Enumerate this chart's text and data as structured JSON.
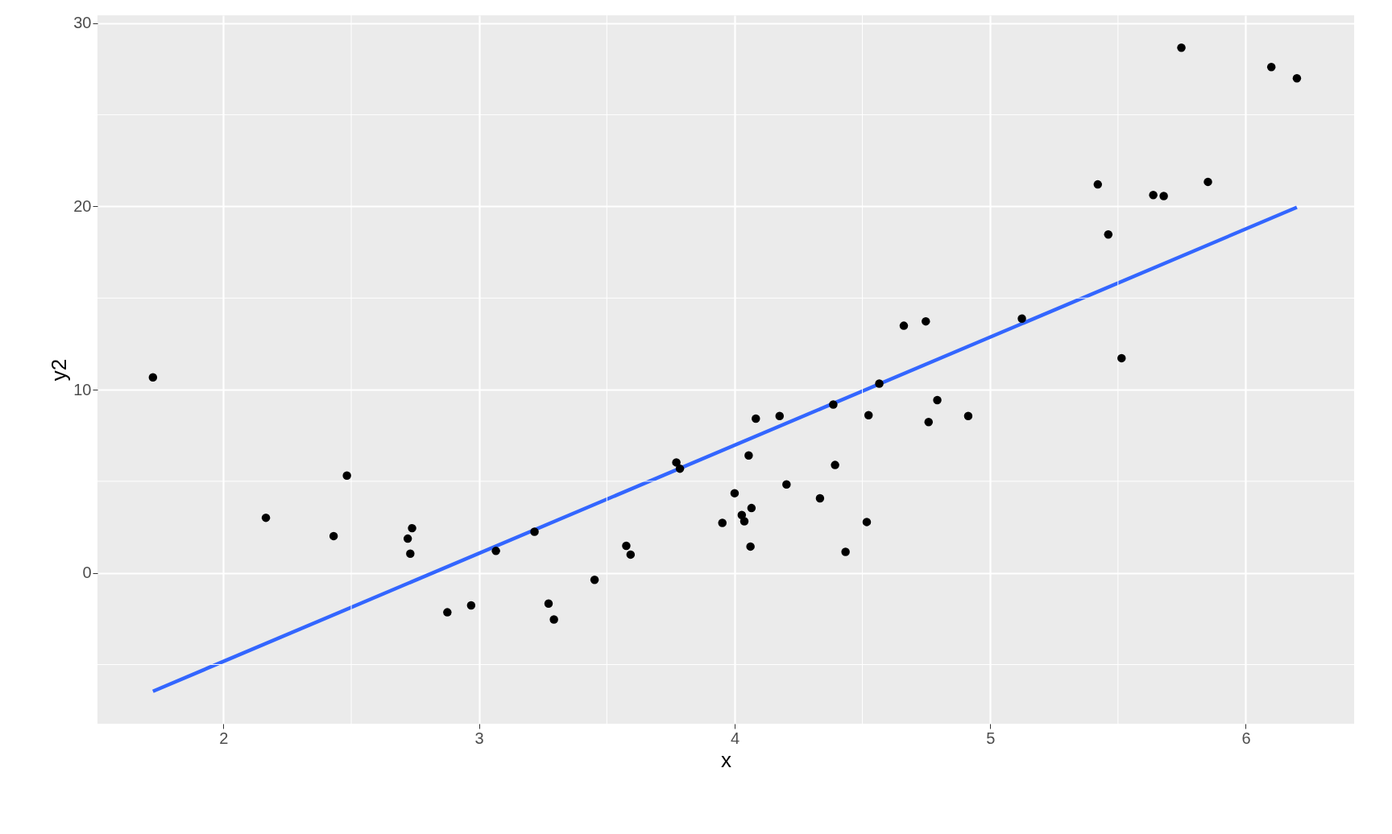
{
  "chart_data": {
    "type": "scatter",
    "xlabel": "x",
    "ylabel": "y2",
    "xlim": [
      1.507,
      6.424
    ],
    "ylim": [
      -8.23,
      30.43
    ],
    "xticks": [
      2,
      3,
      4,
      5,
      6
    ],
    "yticks": [
      0,
      10,
      20,
      30
    ],
    "grid": true,
    "legend": false,
    "marker": "circle",
    "series": [
      {
        "type": "scatter",
        "color": "#000000",
        "x": [
          1.724,
          2.166,
          2.431,
          2.483,
          2.721,
          2.738,
          2.731,
          2.876,
          2.969,
          3.066,
          3.217,
          3.272,
          3.293,
          3.452,
          3.576,
          3.593,
          3.772,
          3.786,
          3.952,
          4.0,
          4.028,
          4.038,
          4.055,
          4.066,
          4.062,
          4.083,
          4.176,
          4.203,
          4.334,
          4.386,
          4.393,
          4.434,
          4.517,
          4.524,
          4.566,
          4.662,
          4.748,
          4.759,
          4.793,
          4.914,
          5.124,
          5.421,
          5.462,
          5.514,
          5.638,
          5.679,
          5.748,
          5.852,
          6.1,
          6.2
        ],
        "values": [
          10.67,
          3.01,
          2.01,
          5.31,
          1.87,
          2.44,
          1.05,
          -2.15,
          -1.77,
          1.2,
          2.25,
          -1.67,
          -2.54,
          -0.38,
          1.48,
          1.0,
          6.03,
          5.69,
          2.73,
          4.35,
          3.16,
          2.82,
          6.41,
          3.54,
          1.44,
          8.42,
          8.56,
          4.83,
          4.07,
          9.19,
          5.89,
          1.15,
          2.78,
          8.61,
          10.33,
          13.49,
          13.73,
          8.23,
          9.43,
          8.56,
          13.88,
          21.2,
          18.47,
          11.72,
          20.62,
          20.57,
          28.66,
          21.34,
          27.61,
          26.99
        ]
      },
      {
        "type": "line",
        "color": "#3366ff",
        "marker": "none",
        "line_style": "solid",
        "x": [
          1.724,
          6.2
        ],
        "values": [
          -6.46,
          19.95
        ]
      }
    ]
  }
}
